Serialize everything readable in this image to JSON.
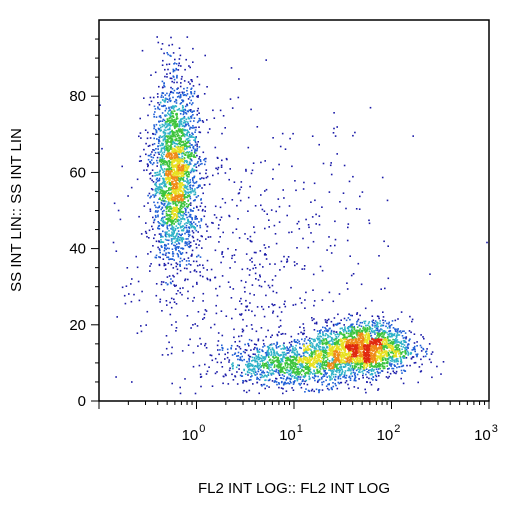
{
  "chart_data": {
    "type": "scatter",
    "title": "",
    "xlabel": "FL2 INT LOG:: FL2 INT LOG",
    "ylabel": "SS INT LIN:: SS INT LIN",
    "x_scale": "log",
    "xlim": [
      0.1,
      1000
    ],
    "ylim": [
      0,
      100
    ],
    "x_ticks": [
      {
        "value": 1,
        "base": "10",
        "exp": "0"
      },
      {
        "value": 10,
        "base": "10",
        "exp": "1"
      },
      {
        "value": 100,
        "base": "10",
        "exp": "2"
      },
      {
        "value": 1000,
        "base": "10",
        "exp": "3"
      }
    ],
    "y_ticks": [
      {
        "value": 0,
        "label": "0"
      },
      {
        "value": 20,
        "label": "20"
      },
      {
        "value": 40,
        "label": "40"
      },
      {
        "value": 60,
        "label": "60"
      },
      {
        "value": 80,
        "label": "80"
      }
    ],
    "density_colors": [
      "#1a1aa8",
      "#1f5fd6",
      "#2fb2c8",
      "#3cc43c",
      "#e8e020",
      "#f08a18",
      "#e02a10"
    ],
    "populations": [
      {
        "x_center": 0.6,
        "y_center": 60,
        "x_spread_decades": 0.12,
        "y_spread": 12,
        "weight": 0.38
      },
      {
        "x_center": 50,
        "y_center": 14,
        "x_spread_decades": 0.25,
        "y_spread": 3.5,
        "weight": 0.32
      },
      {
        "x_center": 10,
        "y_center": 10,
        "x_spread_decades": 0.35,
        "y_spread": 3,
        "weight": 0.2
      },
      {
        "x_center": 3,
        "y_center": 35,
        "x_spread_decades": 0.7,
        "y_spread": 20,
        "weight": 0.1
      }
    ]
  }
}
